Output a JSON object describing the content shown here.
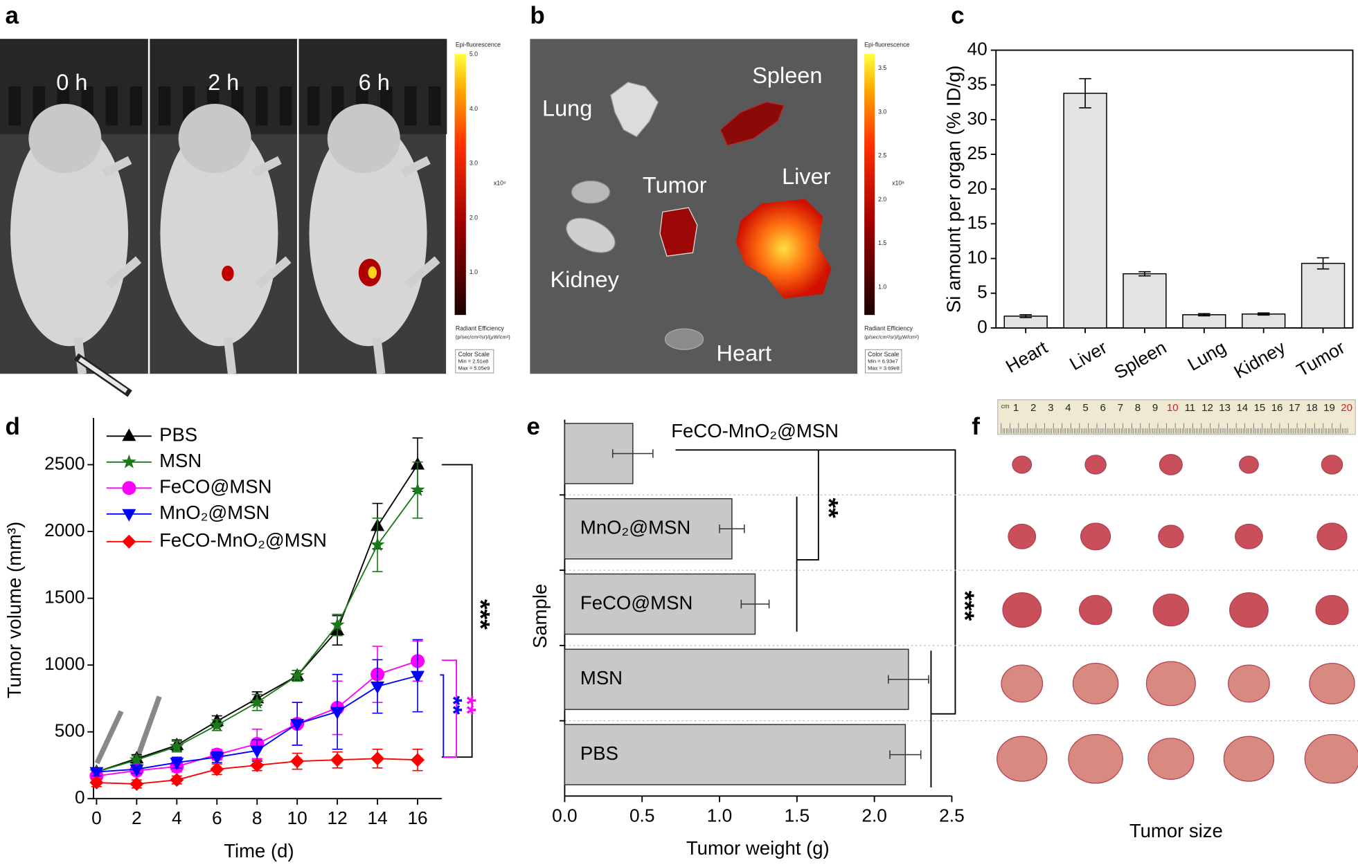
{
  "panel_labels": [
    "a",
    "b",
    "c",
    "d",
    "e",
    "f"
  ],
  "panel_a": {
    "time_labels": [
      "0 h",
      "2 h",
      "6 h"
    ],
    "colorbar": {
      "title": "Epi-fluorescence",
      "ticks": [
        "1.0",
        "2.0",
        "3.0",
        "4.0",
        "5.0"
      ],
      "multiplier": "x10⁹",
      "label": "Radiant Efficiency",
      "units": "(p/sec/cm²/sr)/(µW/cm²)",
      "scale_title": "Color Scale",
      "min": "Min = 2.51e8",
      "max": "Max = 5.05e9"
    }
  },
  "panel_b": {
    "organ_labels": [
      "Lung",
      "Spleen",
      "Tumor",
      "Liver",
      "Kidney",
      "Heart"
    ],
    "colorbar": {
      "title": "Epi-fluorescence",
      "ticks": [
        "1.0",
        "1.5",
        "2.0",
        "2.5",
        "3.0",
        "3.5"
      ],
      "multiplier": "x10⁸",
      "label": "Radiant Efficiency",
      "units": "(p/sec/cm²/sr)/(µW/cm²)",
      "scale_title": "Color Scale",
      "min": "Min = 6.93e7",
      "max": "Max = 3.69e8"
    }
  },
  "chart_data": [
    {
      "type": "bar",
      "ylabel": "Si amount per organ (% ID/g)",
      "categories": [
        "Heart",
        "Liver",
        "Spleen",
        "Lung",
        "Kidney",
        "Tumor"
      ],
      "values": [
        1.7,
        33.8,
        7.8,
        1.9,
        2.0,
        9.3
      ],
      "errors": [
        0.2,
        2.1,
        0.3,
        0.15,
        0.15,
        0.8
      ],
      "color": "#e3e3e3",
      "ylim": [
        0,
        40
      ],
      "yticks": [
        0,
        5,
        10,
        15,
        20,
        25,
        30,
        35,
        40
      ]
    },
    {
      "type": "line",
      "xlabel": "Time (d)",
      "ylabel": "Tumor volume (mm³)",
      "x": [
        0,
        2,
        4,
        6,
        8,
        10,
        12,
        14,
        16
      ],
      "series": [
        {
          "name": "PBS",
          "color": "#000000",
          "marker": "triangle",
          "values": [
            200,
            300,
            400,
            580,
            750,
            920,
            1260,
            2040,
            2500
          ],
          "errors": [
            20,
            30,
            40,
            40,
            50,
            40,
            110,
            170,
            200
          ]
        },
        {
          "name": "MSN",
          "color": "#1a7a1a",
          "marker": "star",
          "values": [
            200,
            290,
            390,
            550,
            720,
            920,
            1300,
            1900,
            2310
          ],
          "errors": [
            20,
            30,
            40,
            40,
            60,
            40,
            80,
            200,
            210
          ]
        },
        {
          "name": "FeCO@MSN",
          "color": "#ff00ff",
          "marker": "circle",
          "values": [
            170,
            210,
            240,
            330,
            410,
            560,
            680,
            930,
            1030
          ],
          "errors": [
            30,
            30,
            40,
            40,
            110,
            160,
            200,
            210,
            150
          ]
        },
        {
          "name": "MnO₂@MSN",
          "color": "#0000ff",
          "marker": "triangle-down",
          "values": [
            200,
            220,
            270,
            310,
            360,
            560,
            650,
            840,
            920
          ],
          "errors": [
            30,
            30,
            40,
            40,
            80,
            160,
            280,
            200,
            270
          ]
        },
        {
          "name": "FeCO-MnO₂@MSN",
          "color": "#ff0000",
          "marker": "diamond",
          "values": [
            120,
            110,
            140,
            220,
            250,
            280,
            290,
            300,
            290
          ],
          "errors": [
            30,
            30,
            30,
            40,
            40,
            60,
            60,
            70,
            80
          ]
        }
      ],
      "annotations": [
        {
          "text": "***",
          "color": "#000000"
        },
        {
          "text": "**",
          "color": "#0000ff"
        },
        {
          "text": "**",
          "color": "#ff00ff"
        }
      ],
      "xlim": [
        -0.15,
        17.2
      ],
      "xticks": [
        0,
        2,
        4,
        6,
        8,
        10,
        12,
        14,
        16
      ],
      "ylim": [
        0,
        2850
      ],
      "yticks": [
        0,
        500,
        1000,
        1500,
        2000,
        2500
      ]
    },
    {
      "type": "barh",
      "xlabel": "Tumor weight (g)",
      "ylabel": "Sample",
      "categories": [
        "FeCO-MnO₂@MSN",
        "MnO₂@MSN",
        "FeCO@MSN",
        "MSN",
        "PBS"
      ],
      "values": [
        0.44,
        1.08,
        1.23,
        2.22,
        2.2
      ],
      "errors": [
        0.13,
        0.08,
        0.09,
        0.13,
        0.1
      ],
      "color": "#c8c8c8",
      "annotations": [
        {
          "text": "**",
          "color": "#000000"
        },
        {
          "text": "***",
          "color": "#000000"
        }
      ],
      "xlim": [
        0,
        2.5
      ],
      "xticks": [
        {
          "value": 0,
          "label": "0.0"
        },
        0.5,
        {
          "value": 1,
          "label": "1.0"
        },
        1.5,
        {
          "value": 2,
          "label": "2.0"
        },
        2.5
      ]
    }
  ],
  "panel_f": {
    "ruler_unit": "cm",
    "ruler_numbers": [
      1,
      2,
      3,
      4,
      5,
      6,
      7,
      8,
      9,
      10,
      11,
      12,
      13,
      14,
      15,
      16,
      17,
      18,
      19,
      20
    ],
    "caption": "Tumor size"
  }
}
